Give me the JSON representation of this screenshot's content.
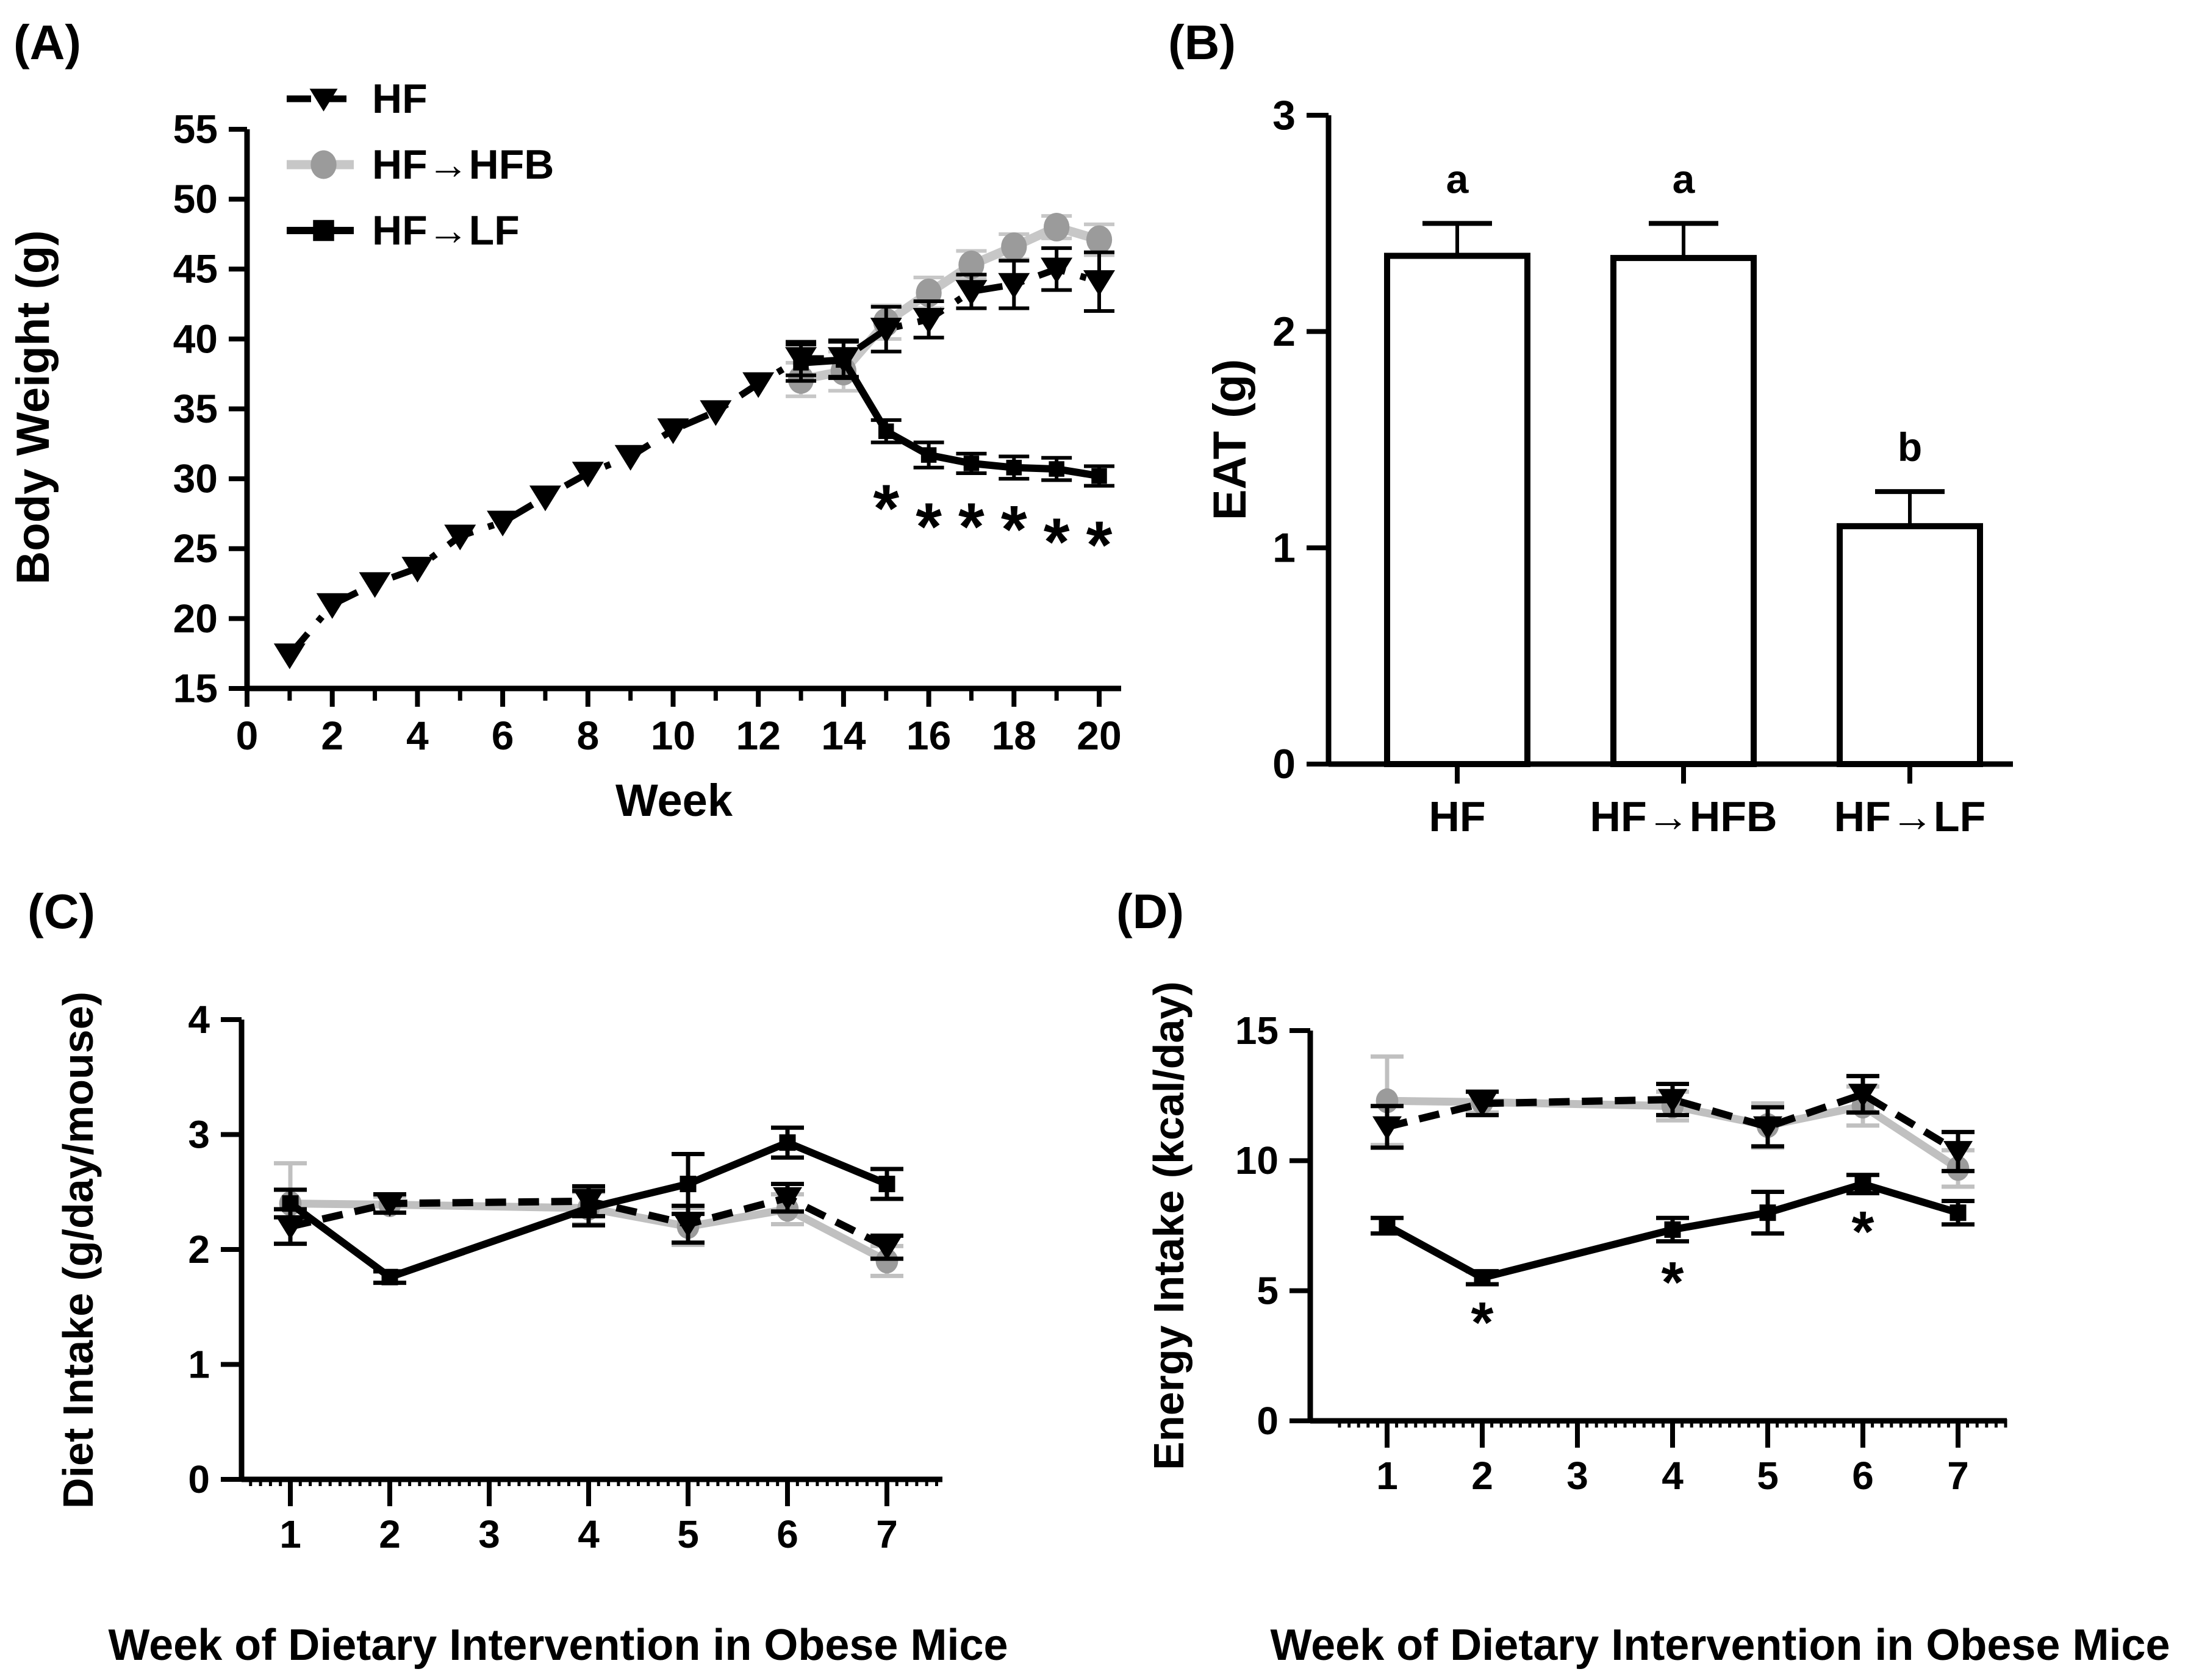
{
  "figure_title": "",
  "colors": {
    "black": "#000000",
    "gray_line": "#C7C7C7",
    "gray_marker": "#9B9B9B",
    "background": "#FFFFFF"
  },
  "chart_data": [
    {
      "panel": "(A)",
      "type": "line",
      "xlabel": "Week",
      "ylabel": "Body Weight (g)",
      "xlim": [
        0,
        20.7
      ],
      "ylim": [
        15,
        55
      ],
      "xticks": [
        0,
        2,
        4,
        6,
        8,
        10,
        12,
        14,
        16,
        18,
        20
      ],
      "xticks_minor": [
        1,
        3,
        5,
        7,
        9,
        11,
        13,
        15,
        17,
        19
      ],
      "yticks": [
        15,
        20,
        25,
        30,
        35,
        40,
        45,
        50,
        55
      ],
      "grid": false,
      "legend_position": "top-left-inside",
      "series": [
        {
          "name": "HF",
          "marker": "triangle-down",
          "line": "dashed",
          "color": "#000000",
          "line_color": "#000000",
          "z": 2,
          "x": [
            1,
            2,
            3,
            4,
            5,
            6,
            7,
            8,
            9,
            10,
            11,
            12,
            13,
            14,
            15,
            16,
            17,
            18,
            19,
            20
          ],
          "y": [
            17.4,
            21.0,
            22.5,
            23.6,
            25.9,
            26.9,
            28.7,
            30.4,
            31.6,
            33.5,
            34.8,
            36.8,
            38.6,
            38.6,
            40.7,
            41.4,
            43.4,
            43.9,
            45.0,
            44.1
          ],
          "err": [
            0,
            0,
            0,
            0,
            0,
            0,
            0,
            0,
            0,
            0,
            0,
            0,
            1.2,
            1.3,
            1.6,
            1.3,
            1.2,
            1.7,
            1.5,
            2.1
          ]
        },
        {
          "name": "HF→HFB",
          "marker": "circle",
          "line": "solid",
          "color": "#9B9B9B",
          "line_color": "#C7C7C7",
          "z": 1,
          "x": [
            13,
            14,
            15,
            16,
            17,
            18,
            19,
            20
          ],
          "y": [
            37.1,
            37.7,
            41.2,
            43.3,
            45.3,
            46.6,
            48.0,
            47.1
          ],
          "err": [
            1.2,
            1.4,
            1.2,
            1.1,
            1.0,
            0.9,
            0.8,
            1.1
          ]
        },
        {
          "name": "HF→LF",
          "marker": "square",
          "line": "solid",
          "color": "#000000",
          "line_color": "#000000",
          "z": 3,
          "x": [
            13,
            14,
            15,
            16,
            17,
            18,
            19,
            20
          ],
          "y": [
            38.3,
            38.5,
            33.4,
            31.7,
            31.1,
            30.8,
            30.7,
            30.2
          ],
          "err": [
            1.3,
            1.3,
            0.8,
            0.9,
            0.7,
            0.8,
            0.8,
            0.7
          ]
        }
      ],
      "annotations": [
        {
          "text": "*",
          "x": 15,
          "y": 29.2
        },
        {
          "text": "*",
          "x": 16,
          "y": 27.9
        },
        {
          "text": "*",
          "x": 17,
          "y": 27.9
        },
        {
          "text": "*",
          "x": 18,
          "y": 27.7
        },
        {
          "text": "*",
          "x": 19,
          "y": 26.8
        },
        {
          "text": "*",
          "x": 20,
          "y": 26.6
        }
      ]
    },
    {
      "panel": "(B)",
      "type": "bar",
      "xlabel": "",
      "ylabel": "EAT (g)",
      "ylim": [
        0,
        3
      ],
      "yticks": [
        0,
        1,
        2,
        3
      ],
      "grid": false,
      "categories": [
        "HF",
        "HF→HFB",
        "HF→LF"
      ],
      "values": [
        2.35,
        2.34,
        1.1
      ],
      "errors": [
        0.15,
        0.16,
        0.16
      ],
      "sig_letters": [
        "a",
        "a",
        "b"
      ],
      "bar_fill": "#FFFFFF",
      "bar_stroke": "#000000"
    },
    {
      "panel": "(C)",
      "type": "line",
      "xlabel": "Week of Dietary Intervention in Obese Mice",
      "ylabel": "Diet Intake (g/day/mouse)",
      "xlim": [
        0.4,
        7.6
      ],
      "ylim": [
        0,
        4
      ],
      "xticks": [
        1,
        2,
        3,
        4,
        5,
        6,
        7
      ],
      "yticks": [
        0,
        1,
        2,
        3,
        4
      ],
      "xminor_step": 0.1,
      "grid": false,
      "series": [
        {
          "name": "HF",
          "marker": "triangle-down",
          "line": "dashed",
          "color": "#000000",
          "line_color": "#000000",
          "z": 2,
          "x": [
            1,
            2,
            4,
            5,
            6,
            7
          ],
          "y": [
            2.2,
            2.4,
            2.42,
            2.22,
            2.45,
            2.02
          ],
          "err": [
            0.15,
            0.08,
            0.13,
            0.16,
            0.12,
            0.1
          ]
        },
        {
          "name": "HF→HFB",
          "marker": "circle",
          "line": "solid",
          "color": "#9B9B9B",
          "line_color": "#C0C0C0",
          "z": 1,
          "x": [
            1,
            2,
            4,
            5,
            6,
            7
          ],
          "y": [
            2.4,
            2.39,
            2.36,
            2.2,
            2.35,
            1.9
          ],
          "err": [
            0.35,
            0.07,
            0.14,
            0.16,
            0.13,
            0.13
          ]
        },
        {
          "name": "HF→LF",
          "marker": "square",
          "line": "solid",
          "color": "#000000",
          "line_color": "#000000",
          "z": 3,
          "x": [
            1,
            2,
            4,
            5,
            6,
            7
          ],
          "y": [
            2.4,
            1.76,
            2.36,
            2.57,
            2.93,
            2.57
          ],
          "err": [
            0.12,
            0.05,
            0.15,
            0.26,
            0.13,
            0.13
          ]
        }
      ],
      "annotations": []
    },
    {
      "panel": "(D)",
      "type": "line",
      "xlabel": "Week of Dietary Intervention in Obese Mice",
      "ylabel": "Energy Intake (kcal/day)",
      "xlim": [
        0.4,
        7.6
      ],
      "ylim": [
        0,
        15
      ],
      "xticks": [
        1,
        2,
        3,
        4,
        5,
        6,
        7
      ],
      "yticks": [
        0,
        5,
        10,
        15
      ],
      "xminor_step": 0.1,
      "grid": false,
      "series": [
        {
          "name": "HF",
          "marker": "triangle-down",
          "line": "dashed",
          "color": "#000000",
          "line_color": "#000000",
          "z": 2,
          "x": [
            1,
            2,
            4,
            5,
            6,
            7
          ],
          "y": [
            11.3,
            12.2,
            12.35,
            11.3,
            12.55,
            10.35
          ],
          "err": [
            0.8,
            0.45,
            0.6,
            0.75,
            0.7,
            0.75
          ]
        },
        {
          "name": "HF→HFB",
          "marker": "circle",
          "line": "solid",
          "color": "#9B9B9B",
          "line_color": "#C0C0C0",
          "z": 1,
          "x": [
            1,
            2,
            4,
            5,
            6,
            7
          ],
          "y": [
            12.3,
            12.25,
            12.1,
            11.35,
            12.1,
            9.7
          ],
          "err": [
            1.7,
            0.4,
            0.55,
            0.85,
            0.75,
            0.7
          ]
        },
        {
          "name": "HF→LF",
          "marker": "square",
          "line": "solid",
          "color": "#000000",
          "line_color": "#000000",
          "z": 3,
          "x": [
            1,
            2,
            4,
            5,
            6,
            7
          ],
          "y": [
            7.5,
            5.5,
            7.35,
            8.0,
            9.1,
            8.0
          ],
          "err": [
            0.3,
            0.25,
            0.45,
            0.8,
            0.35,
            0.45
          ]
        }
      ],
      "annotations": [
        {
          "text": "*",
          "x": 2,
          "y": 4.4
        },
        {
          "text": "*",
          "x": 4,
          "y": 5.95
        },
        {
          "text": "*",
          "x": 6,
          "y": 7.9
        }
      ]
    }
  ]
}
